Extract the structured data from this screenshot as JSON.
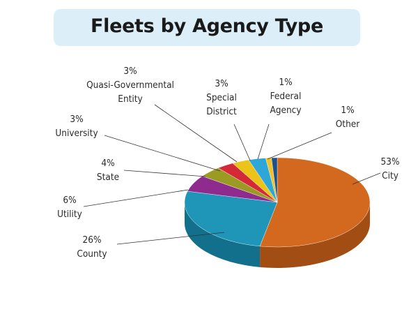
{
  "chart_data": {
    "type": "pie",
    "title": "Fleets by Agency Type",
    "slices": [
      {
        "name": "City",
        "value": 53,
        "label_value": "53%",
        "label_lines": [
          "City"
        ],
        "color": "#d2691f",
        "side": "#a24d14"
      },
      {
        "name": "County",
        "value": 26,
        "label_value": "26%",
        "label_lines": [
          "County"
        ],
        "color": "#1f95b8",
        "side": "#13708d"
      },
      {
        "name": "Utility",
        "value": 6,
        "label_value": "6%",
        "label_lines": [
          "Utility"
        ],
        "color": "#8f2b8f",
        "side": "#6a1f6a"
      },
      {
        "name": "State",
        "value": 4,
        "label_value": "4%",
        "label_lines": [
          "State"
        ],
        "color": "#9b9b24",
        "side": "#74741a"
      },
      {
        "name": "University",
        "value": 3,
        "label_value": "3%",
        "label_lines": [
          "University"
        ],
        "color": "#d42a37",
        "side": "#9e1f28"
      },
      {
        "name": "Quasi-Governmental Entity",
        "value": 3,
        "label_value": "3%",
        "label_lines": [
          "Quasi-Governmental",
          "Entity"
        ],
        "color": "#ecc319",
        "side": "#b89611"
      },
      {
        "name": "Special District",
        "value": 3,
        "label_value": "3%",
        "label_lines": [
          "Special",
          "District"
        ],
        "color": "#2fa6d8",
        "side": "#217ea6"
      },
      {
        "name": "Federal Agency",
        "value": 1,
        "label_value": "1%",
        "label_lines": [
          "Federal",
          "Agency"
        ],
        "color": "#f0c12a",
        "side": "#b8921b"
      },
      {
        "name": "Other",
        "value": 1,
        "label_value": "1%",
        "label_lines": [
          "Other"
        ],
        "color": "#1e4f86",
        "side": "#143a63"
      }
    ]
  }
}
